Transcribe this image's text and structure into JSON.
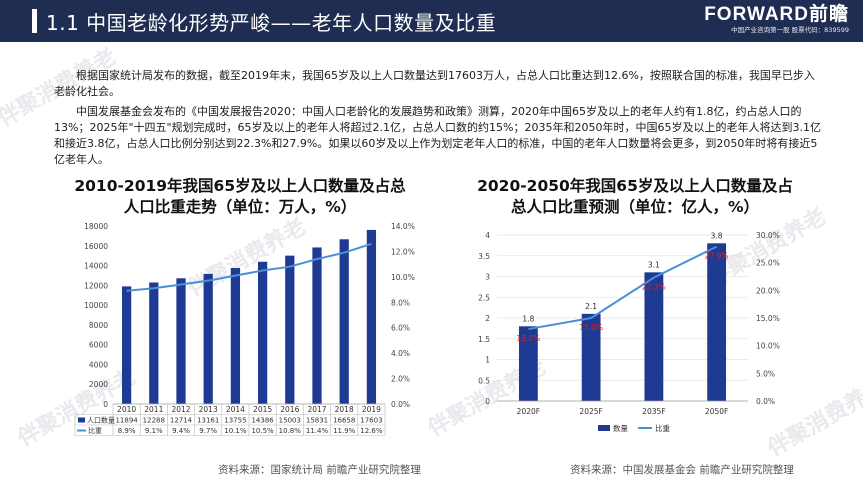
{
  "header": {
    "title": "1.1  中国老龄化形势严峻——老年人口数量及比重",
    "brand": "FORWARD前瞻",
    "brand_sub": "中国产业咨询第一股 股票代码：839599"
  },
  "paragraphs": [
    "根据国家统计局发布的数据，截至2019年末，我国65岁及以上人口数量达到17603万人，占总人口比重达到12.6%，按照联合国的标准，我国早已步入老龄化社会。",
    "中国发展基金会发布的《中国发展报告2020：中国人口老龄化的发展趋势和政策》测算，2020年中国65岁及以上的老年人约有1.8亿，约占总人口的13%；2025年\"十四五\"规划完成时，65岁及以上的老年人将超过2.1亿，占总人口数的约15%；2035年和2050年时，中国65岁及以上的老年人将达到3.1亿和接近3.8亿，占总人口比例分别达到22.3%和27.9%。如果以60岁及以上作为划定老年人口的标准，中国的老年人口数量将会更多，到2050年时将有接近5亿老年人。"
  ],
  "watermark": "伴聚消费养老",
  "chart_data": [
    {
      "type": "bar",
      "title": "2010-2019年我国65岁及以上人口数量及占总人口比重走势（单位：万人，%）",
      "categories": [
        "2010",
        "2011",
        "2012",
        "2013",
        "2014",
        "2015",
        "2016",
        "2017",
        "2018",
        "2019"
      ],
      "series": [
        {
          "name": "人口数量",
          "type": "bar",
          "axis": "left",
          "color": "#1f3a93",
          "values": [
            11894,
            12288,
            12714,
            13161,
            13755,
            14386,
            15003,
            15831,
            16658,
            17603
          ]
        },
        {
          "name": "比重",
          "type": "line",
          "axis": "right",
          "color": "#4a90d9",
          "values": [
            8.9,
            9.1,
            9.4,
            9.7,
            10.1,
            10.5,
            10.8,
            11.4,
            11.9,
            12.6
          ],
          "labels": [
            "8.9%",
            "9.1%",
            "9.4%",
            "9.7%",
            "10.1%",
            "10.5%",
            "10.8%",
            "11.4%",
            "11.9%",
            "12.6%"
          ]
        }
      ],
      "ylim": [
        0,
        18000
      ],
      "yticks": [
        "0",
        "2000",
        "4000",
        "6000",
        "8000",
        "10000",
        "12000",
        "14000",
        "16000",
        "18000"
      ],
      "y2lim": [
        0,
        14
      ],
      "y2ticks": [
        "0.0%",
        "2.0%",
        "4.0%",
        "6.0%",
        "8.0%",
        "10.0%",
        "12.0%",
        "14.0%"
      ],
      "legend": "table-below",
      "grid": false,
      "source": "资料来源：国家统计局 前瞻产业研究院整理"
    },
    {
      "type": "bar",
      "title": "2020-2050年我国65岁及以上人口数量及占总人口比重预测（单位：亿人，%）",
      "categories": [
        "2020F",
        "2025F",
        "2035F",
        "2050F"
      ],
      "series": [
        {
          "name": "数量",
          "type": "bar",
          "axis": "left",
          "color": "#1f3a93",
          "values": [
            1.8,
            2.1,
            3.1,
            3.8
          ],
          "labels": [
            "1.8",
            "2.1",
            "3.1",
            "3.8"
          ]
        },
        {
          "name": "比重",
          "type": "line",
          "axis": "right",
          "color": "#4a90d9",
          "values": [
            13.0,
            15.0,
            22.3,
            27.9
          ],
          "labels": [
            "13.0%",
            "15.0%",
            "22.3%",
            "27.9%"
          ],
          "label_color": "#e02020"
        }
      ],
      "ylim": [
        0,
        4
      ],
      "yticks": [
        "0",
        "0.5",
        "1",
        "1.5",
        "2",
        "2.5",
        "3",
        "3.5",
        "4"
      ],
      "y2lim": [
        0,
        30
      ],
      "y2ticks": [
        "0.0%",
        "5.0%",
        "10.0%",
        "15.0%",
        "20.0%",
        "25.0%",
        "30.0%"
      ],
      "legend": "bottom",
      "grid": true,
      "source": "资料来源：中国发展基金会 前瞻产业研究院整理"
    }
  ]
}
